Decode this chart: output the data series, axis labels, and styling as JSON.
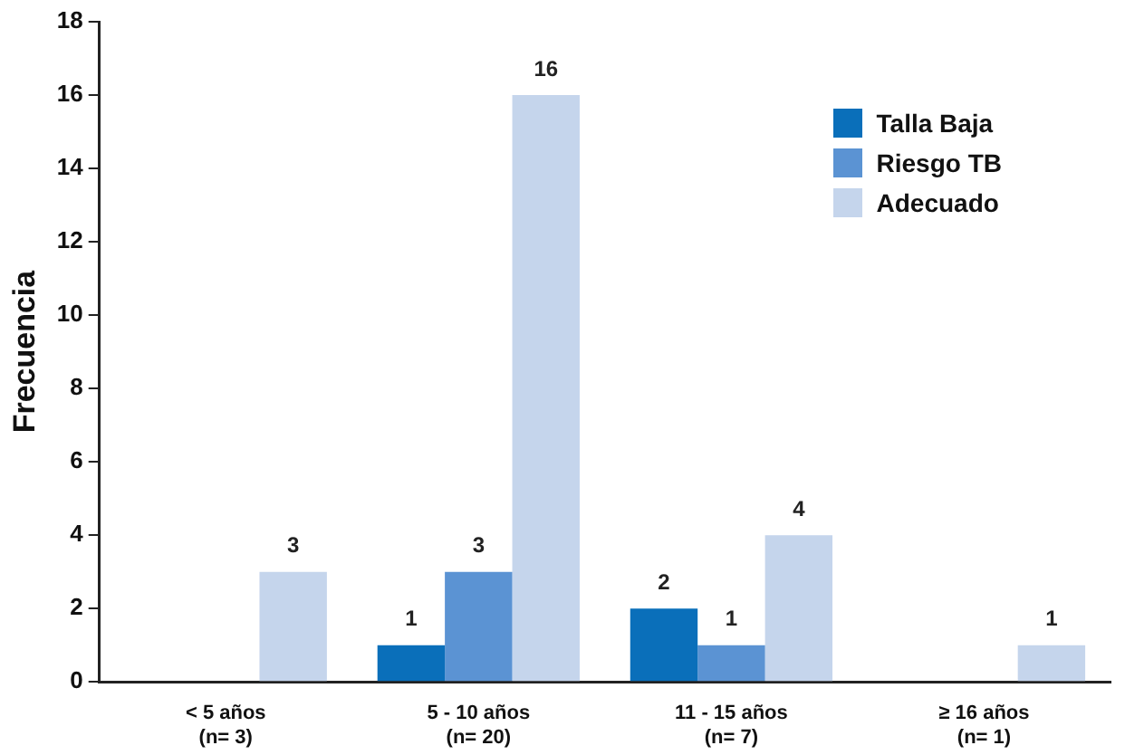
{
  "chart_data": {
    "type": "bar",
    "ylabel": "Frecuencia",
    "categories": [
      "< 5 años\n(n= 3)",
      "5 - 10 años\n(n= 20)",
      "11 - 15 años\n(n= 7)",
      "≥ 16 años\n(n= 1)"
    ],
    "series": [
      {
        "name": "Talla Baja",
        "color": "#0a6fba",
        "values": [
          null,
          1,
          2,
          null
        ]
      },
      {
        "name": "Riesgo TB",
        "color": "#5b93d3",
        "values": [
          null,
          3,
          1,
          null
        ]
      },
      {
        "name": "Adecuado",
        "color": "#c5d5ec",
        "values": [
          3,
          16,
          4,
          1
        ]
      }
    ],
    "ylim": [
      0,
      18
    ],
    "yticks": [
      0,
      2,
      4,
      6,
      8,
      10,
      12,
      14,
      16,
      18
    ],
    "grid": false,
    "legend": "top right",
    "data_labels": true
  }
}
